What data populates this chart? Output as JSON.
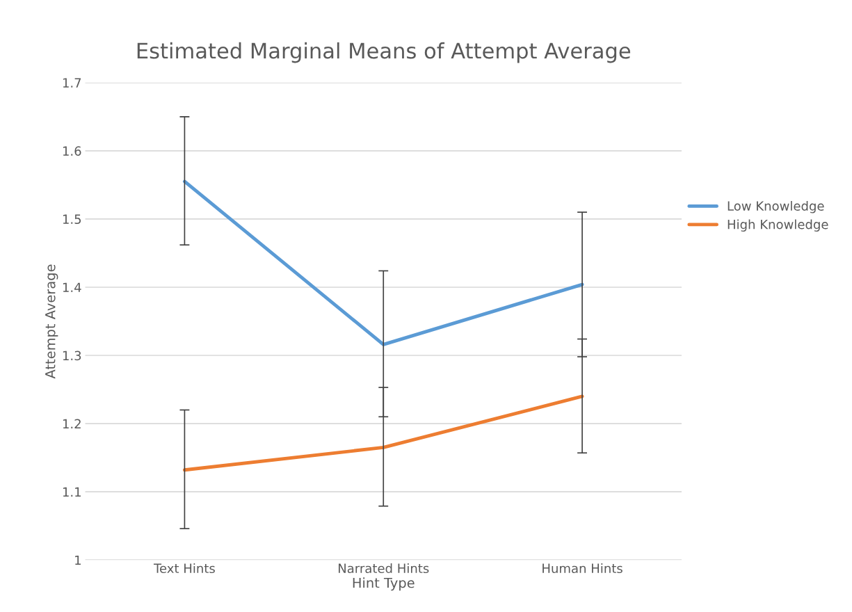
{
  "chart_data": {
    "type": "line",
    "title": "Estimated Marginal Means of Attempt Average",
    "xlabel": "Hint Type",
    "ylabel": "Attempt Average",
    "categories": [
      "Text Hints",
      "Narrated Hints",
      "Human Hints"
    ],
    "series": [
      {
        "name": "Low Knowledge",
        "color": "#5b9bd5",
        "values": [
          1.555,
          1.316,
          1.404
        ],
        "errors": [
          [
            1.462,
            1.65
          ],
          [
            1.21,
            1.424
          ],
          [
            1.298,
            1.51
          ]
        ]
      },
      {
        "name": "High Knowledge",
        "color": "#ed7d31",
        "values": [
          1.132,
          1.165,
          1.24
        ],
        "errors": [
          [
            1.046,
            1.22
          ],
          [
            1.079,
            1.253
          ],
          [
            1.157,
            1.324
          ]
        ]
      }
    ],
    "ylim": [
      1,
      1.7
    ],
    "yticks": [
      1,
      1.1,
      1.2,
      1.3,
      1.4,
      1.5,
      1.6,
      1.7
    ],
    "grid": "y",
    "legend": "right",
    "marker": "none",
    "line_style": "solid"
  }
}
